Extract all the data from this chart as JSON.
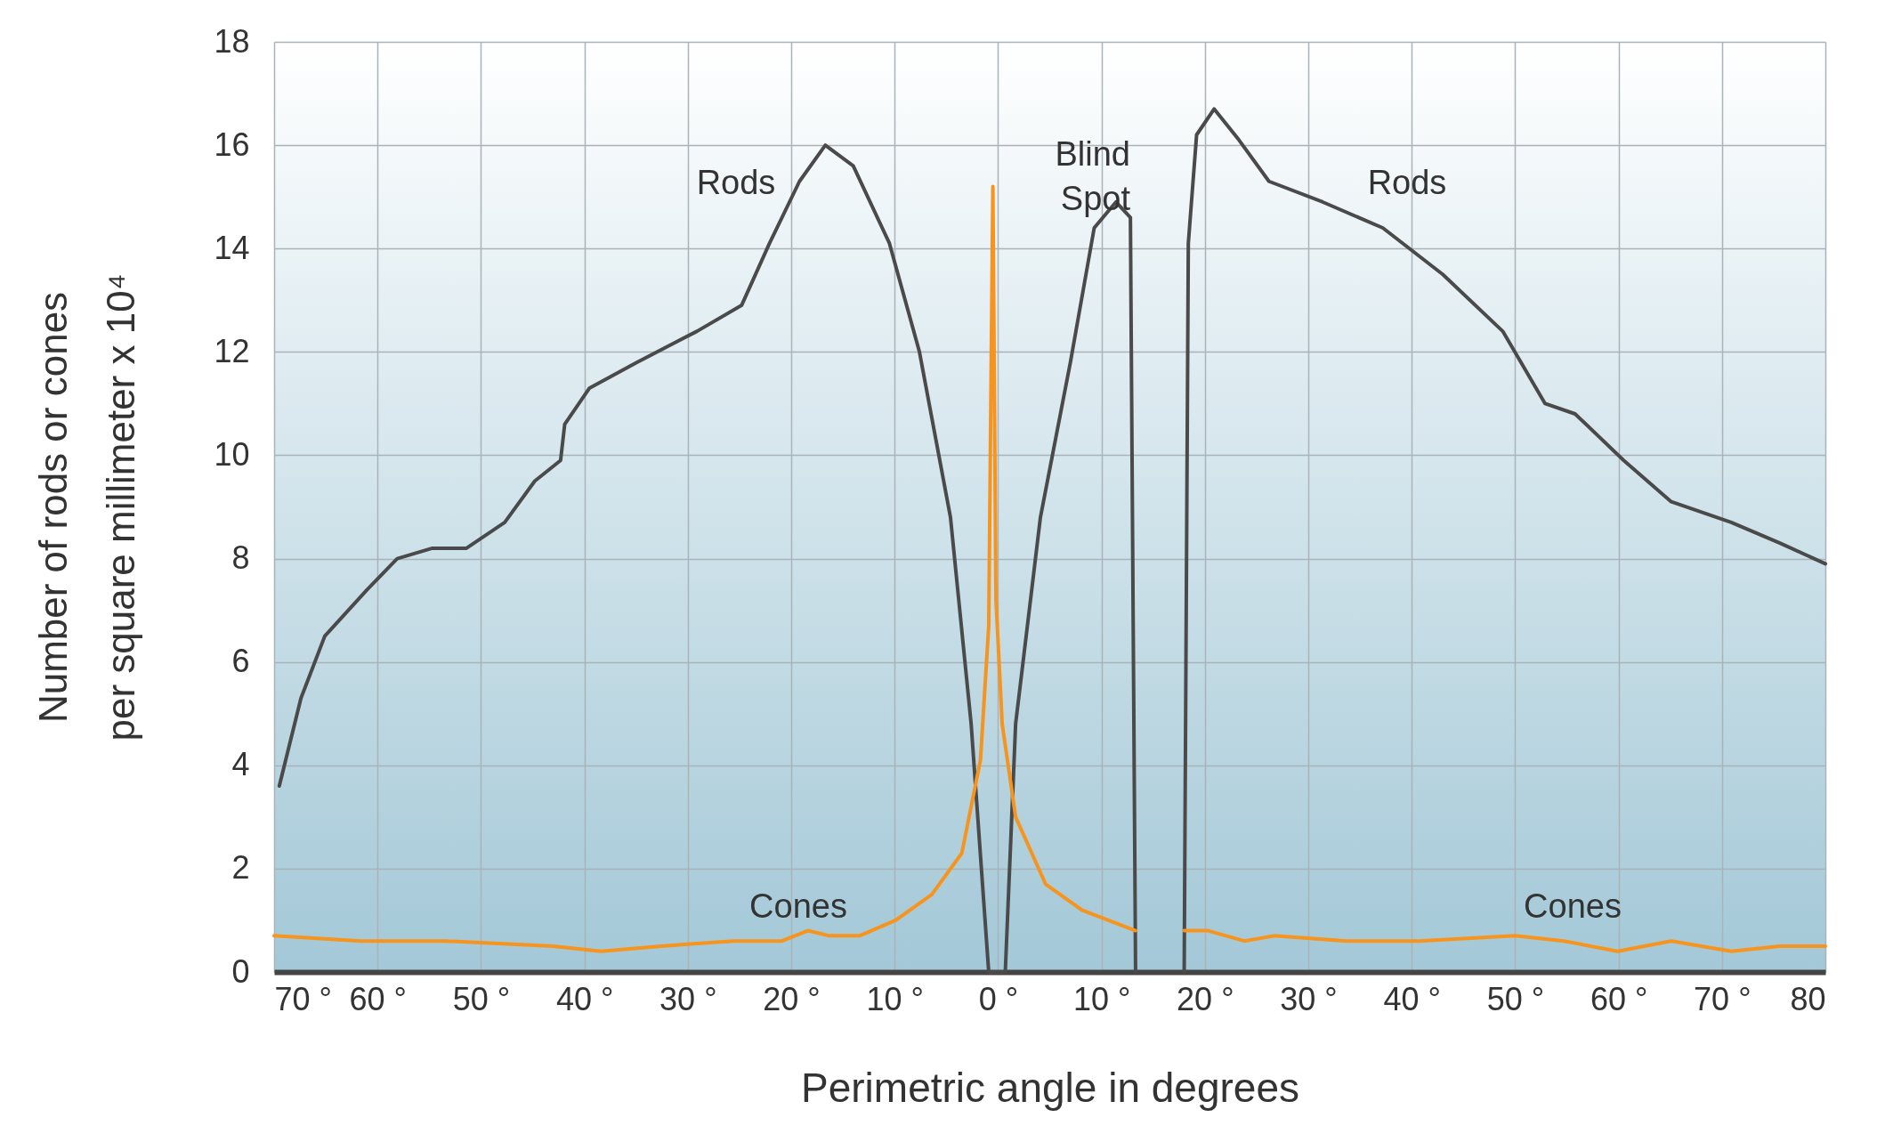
{
  "chart_data": {
    "type": "line",
    "xlabel": "Perimetric angle in degrees",
    "ylabel": "Number of rods or cones\nper square millimeter x 10⁴",
    "xlim": [
      -70,
      80
    ],
    "xticks": [
      {
        "value": -70,
        "label": "70 °"
      },
      {
        "value": -60,
        "label": "60 °"
      },
      {
        "value": -50,
        "label": "50 °"
      },
      {
        "value": -40,
        "label": "40 °"
      },
      {
        "value": -30,
        "label": "30 °"
      },
      {
        "value": -20,
        "label": "20 °"
      },
      {
        "value": -10,
        "label": "10 °"
      },
      {
        "value": 0,
        "label": "0 °"
      },
      {
        "value": 10,
        "label": "10 °"
      },
      {
        "value": 20,
        "label": "20 °"
      },
      {
        "value": 30,
        "label": "30 °"
      },
      {
        "value": 40,
        "label": "40 °"
      },
      {
        "value": 50,
        "label": "50 °"
      },
      {
        "value": 60,
        "label": "60 °"
      },
      {
        "value": 70,
        "label": "70 °"
      },
      80
    ],
    "ylim": [
      0,
      18
    ],
    "yticks": [
      0,
      2,
      4,
      6,
      8,
      10,
      12,
      14,
      16,
      18
    ],
    "grid": true,
    "legend": false,
    "line_style": "solid",
    "series": [
      {
        "color": "#4a4a4a",
        "x": [
          -69.5,
          -67.4,
          -65.1,
          -61,
          -58.1,
          -54.7,
          -51.4,
          -47.7,
          -44.8,
          -42.3,
          -41.9,
          -39.5,
          -34.9,
          -29.1,
          -24.8,
          -22.1,
          -19.2,
          -16.7,
          -14,
          -10.5,
          -7.6,
          -4.6,
          -2.6,
          -0.9,
          0.7,
          1.7,
          4.1,
          7,
          9.3,
          11.4,
          12.8,
          13.3,
          15.6,
          18,
          18.4,
          19.2,
          20.9,
          23.3,
          26.2,
          31.4,
          37.2,
          43,
          48.8,
          52.9,
          55.8,
          60.5,
          65.1,
          70.9,
          75.6,
          80
        ],
        "values": [
          3.6,
          5.3,
          6.5,
          7.4,
          8.0,
          8.2,
          8.2,
          8.7,
          9.5,
          9.9,
          10.6,
          11.3,
          11.8,
          12.4,
          12.9,
          14.1,
          15.3,
          16.0,
          15.6,
          14.1,
          12.0,
          8.8,
          4.8,
          0,
          0,
          4.8,
          8.8,
          11.8,
          14.4,
          14.9,
          14.6,
          0,
          null,
          0,
          14.1,
          16.2,
          16.7,
          16.1,
          15.3,
          14.9,
          14.4,
          13.5,
          12.4,
          11.0,
          10.8,
          9.9,
          9.1,
          8.7,
          8.3,
          7.9
        ]
      },
      {
        "color": "#f7941d",
        "x": [
          -70,
          -61.6,
          -58.1,
          -53.5,
          -43,
          -38.4,
          -32.6,
          -25.6,
          -20.9,
          -18.4,
          -16.3,
          -13.4,
          -9.9,
          -6.4,
          -3.5,
          -1.7,
          -0.9,
          -0.5,
          -0.2,
          0.4,
          1.7,
          4.6,
          8.1,
          13.3,
          15.6,
          18,
          20.3,
          23.8,
          26.7,
          33.7,
          40.7,
          50,
          54.7,
          59.9,
          65.1,
          70.9,
          75.6,
          80
        ],
        "values": [
          0.7,
          0.6,
          0.6,
          0.6,
          0.5,
          0.4,
          0.5,
          0.6,
          0.6,
          0.8,
          0.7,
          0.7,
          1.0,
          1.5,
          2.3,
          4.1,
          6.7,
          15.2,
          7.2,
          4.8,
          3.0,
          1.7,
          1.2,
          0.8,
          null,
          0.8,
          0.8,
          0.6,
          0.7,
          0.6,
          0.6,
          0.7,
          0.6,
          0.4,
          0.6,
          0.4,
          0.5,
          0.5
        ]
      }
    ],
    "annotations": [
      "Rods",
      "Rods",
      "Blind\nSpot",
      "Cones",
      "Cones"
    ]
  }
}
